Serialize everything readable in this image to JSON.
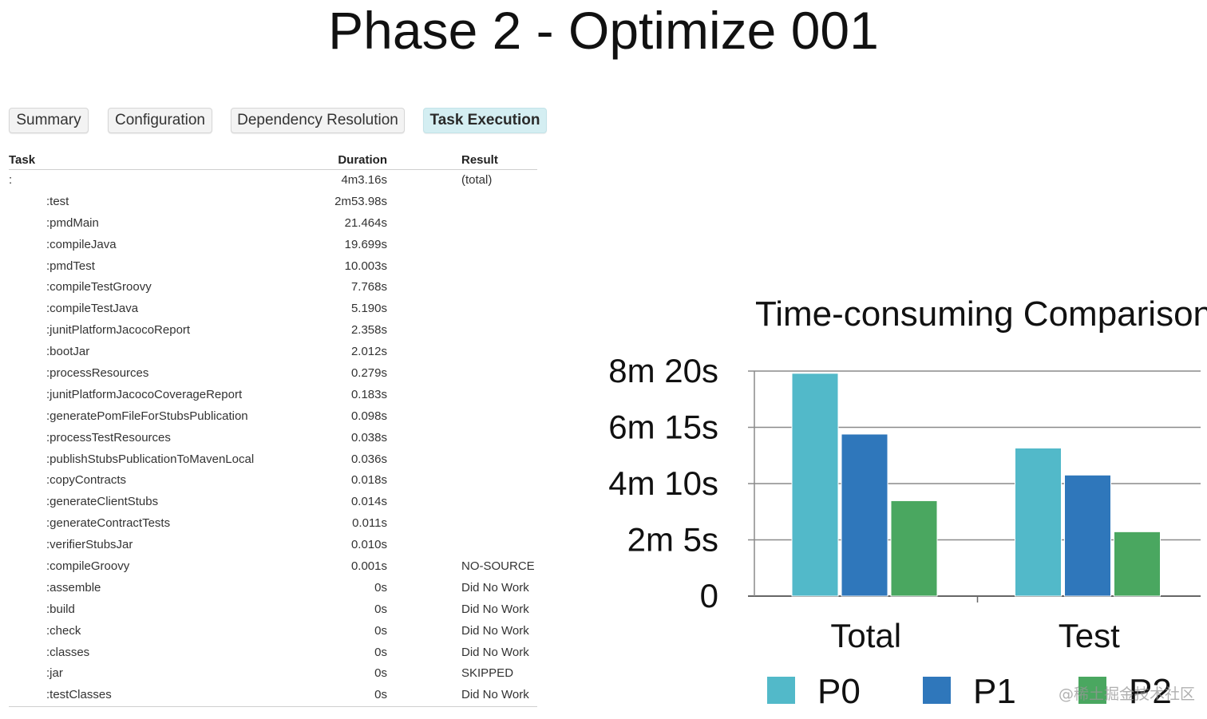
{
  "slide": {
    "title": "Phase 2 - Optimize 001"
  },
  "tabs": [
    {
      "label": "Summary",
      "active": false
    },
    {
      "label": "Configuration",
      "active": false
    },
    {
      "label": "Dependency Resolution",
      "active": false
    },
    {
      "label": "Task Execution",
      "active": true
    }
  ],
  "table": {
    "headers": {
      "task": "Task",
      "duration": "Duration",
      "result": "Result"
    },
    "rows": [
      {
        "task": ":",
        "duration": "4m3.16s",
        "result": "(total)"
      },
      {
        "task": ":test",
        "duration": "2m53.98s",
        "result": ""
      },
      {
        "task": ":pmdMain",
        "duration": "21.464s",
        "result": ""
      },
      {
        "task": ":compileJava",
        "duration": "19.699s",
        "result": ""
      },
      {
        "task": ":pmdTest",
        "duration": "10.003s",
        "result": ""
      },
      {
        "task": ":compileTestGroovy",
        "duration": "7.768s",
        "result": ""
      },
      {
        "task": ":compileTestJava",
        "duration": "5.190s",
        "result": ""
      },
      {
        "task": ":junitPlatformJacocoReport",
        "duration": "2.358s",
        "result": ""
      },
      {
        "task": ":bootJar",
        "duration": "2.012s",
        "result": ""
      },
      {
        "task": ":processResources",
        "duration": "0.279s",
        "result": ""
      },
      {
        "task": ":junitPlatformJacocoCoverageReport",
        "duration": "0.183s",
        "result": ""
      },
      {
        "task": ":generatePomFileForStubsPublication",
        "duration": "0.098s",
        "result": ""
      },
      {
        "task": ":processTestResources",
        "duration": "0.038s",
        "result": ""
      },
      {
        "task": ":publishStubsPublicationToMavenLocal",
        "duration": "0.036s",
        "result": ""
      },
      {
        "task": ":copyContracts",
        "duration": "0.018s",
        "result": ""
      },
      {
        "task": ":generateClientStubs",
        "duration": "0.014s",
        "result": ""
      },
      {
        "task": ":generateContractTests",
        "duration": "0.011s",
        "result": ""
      },
      {
        "task": ":verifierStubsJar",
        "duration": "0.010s",
        "result": ""
      },
      {
        "task": ":compileGroovy",
        "duration": "0.001s",
        "result": "NO-SOURCE"
      },
      {
        "task": ":assemble",
        "duration": "0s",
        "result": "Did No Work"
      },
      {
        "task": ":build",
        "duration": "0s",
        "result": "Did No Work"
      },
      {
        "task": ":check",
        "duration": "0s",
        "result": "Did No Work"
      },
      {
        "task": ":classes",
        "duration": "0s",
        "result": "Did No Work"
      },
      {
        "task": ":jar",
        "duration": "0s",
        "result": "SKIPPED"
      },
      {
        "task": ":testClasses",
        "duration": "0s",
        "result": "Did No Work"
      }
    ]
  },
  "chart_data": {
    "type": "bar",
    "title": "Time-consuming Comparison",
    "categories": [
      "Total",
      "Test"
    ],
    "series": [
      {
        "name": "P0",
        "color": "#52b9c9",
        "values": [
          495,
          329
        ]
      },
      {
        "name": "P1",
        "color": "#2f77bb",
        "values": [
          360,
          269
        ]
      },
      {
        "name": "P2",
        "color": "#4aa760",
        "values": [
          212,
          143
        ]
      }
    ],
    "y_unit": "seconds",
    "ylim": [
      0,
      500
    ],
    "yticks": [
      {
        "value": 0,
        "label": "0"
      },
      {
        "value": 125,
        "label": "2m 5s"
      },
      {
        "value": 250,
        "label": "4m 10s"
      },
      {
        "value": 375,
        "label": "6m 15s"
      },
      {
        "value": 500,
        "label": "8m 20s"
      }
    ],
    "grid": true,
    "legend_position": "bottom"
  },
  "watermark": "@稀土掘金技术社区"
}
